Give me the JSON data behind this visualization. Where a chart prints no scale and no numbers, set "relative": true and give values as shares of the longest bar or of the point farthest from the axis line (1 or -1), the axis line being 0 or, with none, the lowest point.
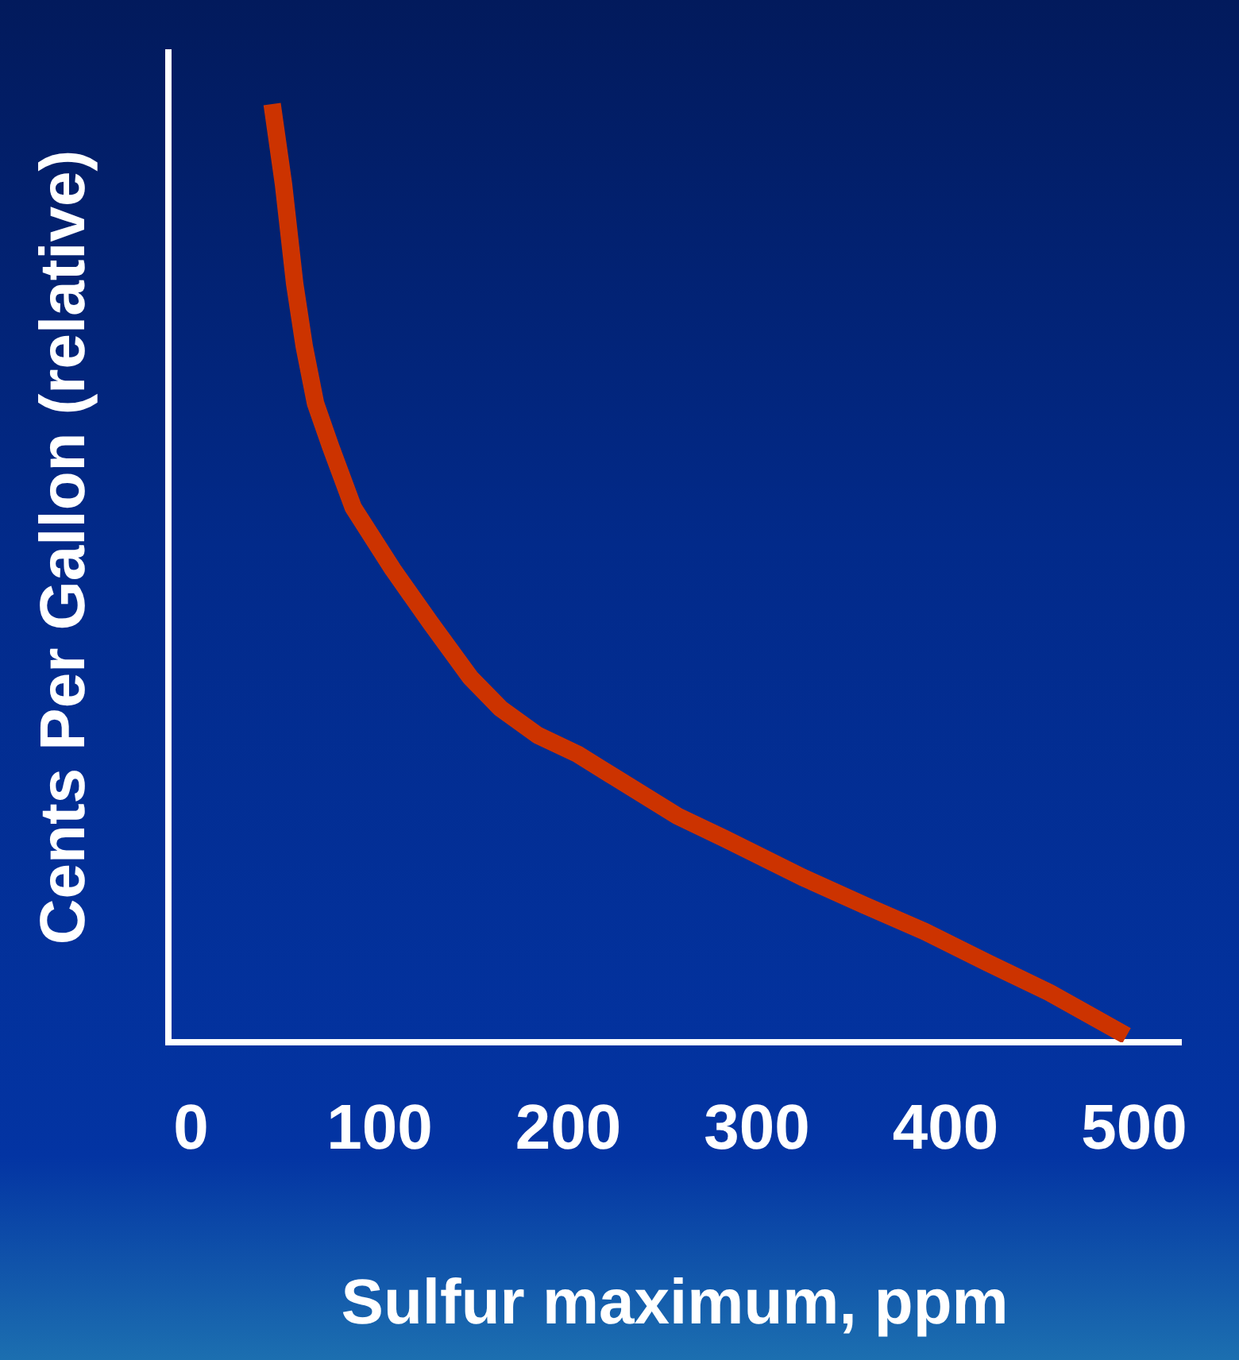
{
  "chart_data": {
    "type": "line",
    "xlabel": "Sulfur maximum, ppm",
    "ylabel": "Cents Per Gallon (relative)",
    "relative": true,
    "grid": false,
    "legend": false,
    "marker": "none",
    "line_style": "solid",
    "xlim": [
      -12,
      525
    ],
    "xticks": [
      0,
      100,
      200,
      300,
      400,
      500
    ],
    "x": [
      43,
      49,
      55,
      60,
      66,
      74,
      86,
      107,
      127,
      148,
      164,
      184,
      205,
      225,
      258,
      283,
      324,
      357,
      389,
      422,
      455,
      496
    ],
    "series": [
      {
        "color": "#cc3300",
        "values": [
          1,
          0.915,
          0.808,
          0.742,
          0.681,
          0.635,
          0.57,
          0.504,
          0.447,
          0.389,
          0.356,
          0.327,
          0.307,
          0.282,
          0.241,
          0.217,
          0.176,
          0.146,
          0.118,
          0.085,
          0.053,
          0.007
        ]
      }
    ]
  }
}
